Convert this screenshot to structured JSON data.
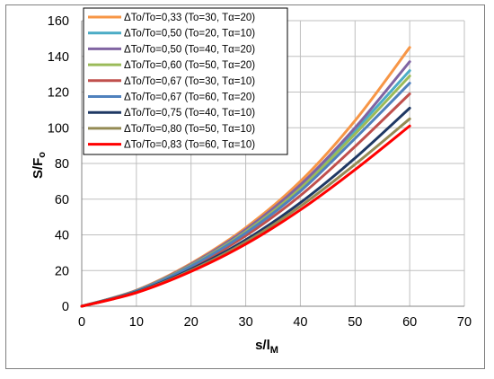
{
  "chart_data": {
    "type": "line",
    "title": "",
    "xlabel": "s/l",
    "xlabel_sub": "M",
    "ylabel": "S/F",
    "ylabel_sub": "o",
    "xlim": [
      0,
      70
    ],
    "ylim": [
      0,
      160
    ],
    "xticks": [
      "0",
      "10",
      "20",
      "30",
      "40",
      "50",
      "60",
      "70"
    ],
    "yticks": [
      "0",
      "20",
      "40",
      "60",
      "80",
      "100",
      "120",
      "140",
      "160"
    ],
    "grid": true,
    "legend_position": "top-left",
    "x": [
      0,
      10,
      20,
      30,
      40,
      50,
      60
    ],
    "series": [
      {
        "name": "ΔTo/To=0,33 (To=30, Tα=20)",
        "color": "#f79646",
        "values": [
          0,
          9,
          24,
          44,
          70,
          104,
          145
        ]
      },
      {
        "name": "ΔTo/To=0,50 (To=20, Tα=10)",
        "color": "#4bacc6",
        "values": [
          0,
          8.7,
          23.2,
          42.5,
          67,
          98.5,
          132
        ]
      },
      {
        "name": "ΔTo/To=0,50 (To=40, Tα=20)",
        "color": "#8064a2",
        "values": [
          0,
          8.8,
          23.5,
          43,
          68,
          100,
          137
        ]
      },
      {
        "name": "ΔTo/To=0,60 (To=50, Tα=20)",
        "color": "#9bbb59",
        "values": [
          0,
          8.6,
          22.9,
          41.8,
          66,
          96.5,
          129
        ]
      },
      {
        "name": "ΔTo/To=0,67 (To=30, Tα=10)",
        "color": "#c0504d",
        "values": [
          0,
          8.3,
          21.8,
          39.5,
          62,
          89.5,
          119
        ]
      },
      {
        "name": "ΔTo/To=0,67 (To=60, Tα=20)",
        "color": "#4f81bd",
        "values": [
          0,
          8.5,
          22.5,
          41,
          64.5,
          94,
          125
        ]
      },
      {
        "name": "ΔTo/To=0,75 (To=40, Tα=10)",
        "color": "#1f3864",
        "values": [
          0,
          8.0,
          20.7,
          37.2,
          58,
          83,
          111
        ]
      },
      {
        "name": "ΔTo/To=0,80 (To=50, Tα=10)",
        "color": "#948a54",
        "values": [
          0,
          7.8,
          20.1,
          36.0,
          56,
          79.5,
          105
        ]
      },
      {
        "name": "ΔTo/To=0,83 (To=60, Tα=10)",
        "color": "#ff0000",
        "values": [
          0,
          7.6,
          19.5,
          34.8,
          54,
          76.5,
          101
        ]
      }
    ]
  }
}
